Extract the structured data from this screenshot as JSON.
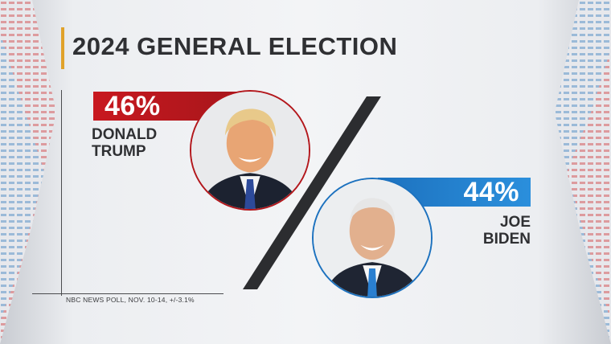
{
  "title": "2024 GENERAL ELECTION",
  "source": "NBC NEWS POLL, NOV. 10-14, +/-3.1%",
  "chart_data": {
    "type": "bar",
    "title": "2024 GENERAL ELECTION",
    "categories": [
      "DONALD TRUMP",
      "JOE BIDEN"
    ],
    "values": [
      46,
      44
    ],
    "unit": "%",
    "candidates": [
      {
        "first": "DONALD",
        "last": "TRUMP",
        "value": 46,
        "value_label": "46%",
        "color": "#c8181f"
      },
      {
        "first": "JOE",
        "last": "BIDEN",
        "value": 44,
        "value_label": "44%",
        "color": "#1d72bf"
      }
    ]
  },
  "colors": {
    "accent": "#e0a22a",
    "republican": "#c8181f",
    "democrat": "#1d72bf"
  },
  "icons": {
    "divider": "slash-divider-icon",
    "trump_photo": "person-portrait-icon",
    "biden_photo": "person-portrait-icon"
  }
}
